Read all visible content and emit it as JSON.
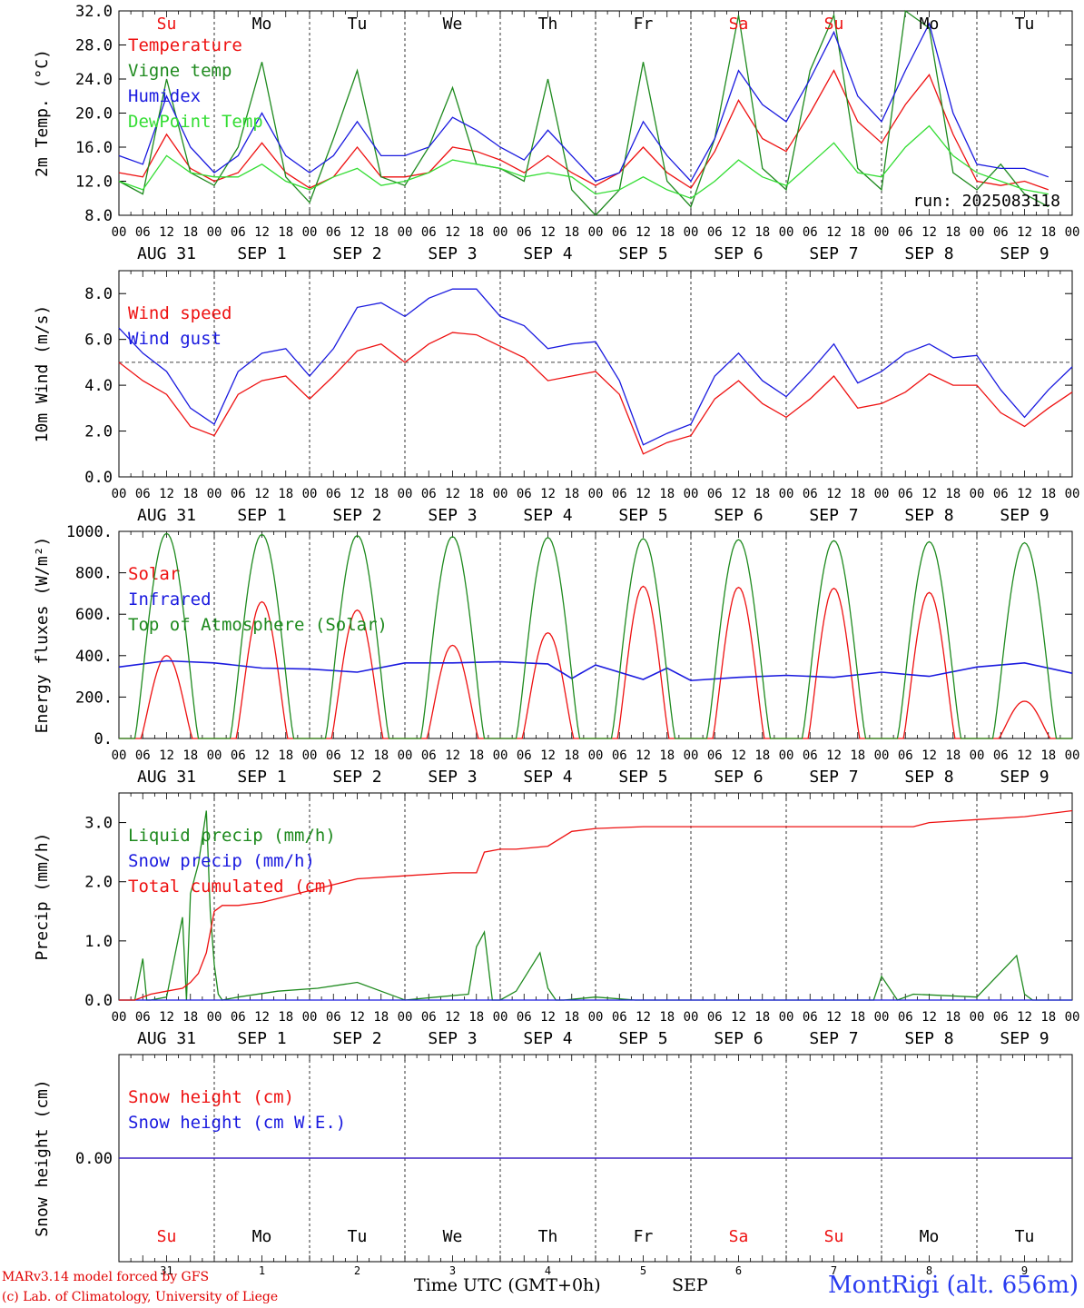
{
  "colors": {
    "red": "#ee1111",
    "green": "#1e8a1e",
    "blue": "#1a1adf",
    "lightgreen": "#33dd33",
    "black": "#000000"
  },
  "footer": {
    "credit_line1": "MARv3.14 model forced by GFS",
    "credit_line2": "(c) Lab. of Climatology, University of Liege",
    "x_title": "Time UTC (GMT+0h)",
    "month_label": "SEP",
    "station": "MontRigi (alt. 656m)"
  },
  "chart_data": [
    {
      "type": "line",
      "ylabel": "2m Temp. (°C)",
      "ylim": [
        8,
        32
      ],
      "yticks": [
        "8.0",
        "12.0",
        "16.0",
        "20.0",
        "24.0",
        "28.0",
        "32.0"
      ],
      "ytick_values": [
        8,
        12,
        16,
        20,
        24,
        28,
        32
      ],
      "run_label": "run: 2025083118",
      "day_labels": [
        {
          "text": "Su",
          "color": "red"
        },
        {
          "text": "Mo",
          "color": "black"
        },
        {
          "text": "Tu",
          "color": "black"
        },
        {
          "text": "We",
          "color": "black"
        },
        {
          "text": "Th",
          "color": "black"
        },
        {
          "text": "Fr",
          "color": "black"
        },
        {
          "text": "Sa",
          "color": "red"
        },
        {
          "text": "Su",
          "color": "red"
        },
        {
          "text": "Mo",
          "color": "black"
        },
        {
          "text": "Tu",
          "color": "black"
        }
      ],
      "series": [
        {
          "name": "Temperature",
          "color": "red",
          "hours": [
            0,
            6,
            12,
            18,
            24,
            30,
            36,
            42,
            48,
            54,
            60,
            66,
            72,
            78,
            84,
            90,
            96,
            102,
            108,
            114,
            120,
            126,
            132,
            138,
            144,
            150,
            156,
            162,
            168,
            174,
            180,
            186,
            192,
            198,
            204,
            210,
            216,
            222,
            228,
            234
          ],
          "values": [
            13,
            12.5,
            17.5,
            13.5,
            12,
            13,
            16.5,
            13,
            11.2,
            12.5,
            16,
            12.5,
            12.5,
            13,
            16,
            15.5,
            14.5,
            13,
            15,
            13,
            11.5,
            13,
            16,
            13,
            11.2,
            15.5,
            21.5,
            17,
            15.5,
            20,
            25,
            19,
            16.5,
            21,
            24.5,
            17.5,
            12,
            11.5,
            12,
            11
          ]
        },
        {
          "name": "Vigne temp",
          "color": "green",
          "hours": [
            0,
            6,
            12,
            18,
            24,
            30,
            36,
            42,
            48,
            54,
            60,
            66,
            72,
            78,
            84,
            90,
            96,
            102,
            108,
            114,
            120,
            126,
            132,
            138,
            144,
            150,
            156,
            162,
            168,
            174,
            180,
            186,
            192,
            198,
            204,
            210,
            216,
            222,
            228,
            234
          ],
          "values": [
            12,
            10.5,
            24,
            13,
            11.5,
            16,
            26,
            12.5,
            9.5,
            17,
            25,
            12.5,
            11.5,
            16,
            23,
            14,
            13.5,
            12,
            24,
            11,
            8,
            11,
            26,
            12,
            9,
            17,
            31.5,
            13.5,
            11,
            25,
            31.5,
            13.5,
            11,
            32,
            30,
            13,
            11,
            14,
            10.5,
            9
          ]
        },
        {
          "name": "Humidex",
          "color": "blue",
          "hours": [
            0,
            6,
            12,
            18,
            24,
            30,
            36,
            42,
            48,
            54,
            60,
            66,
            72,
            78,
            84,
            90,
            96,
            102,
            108,
            114,
            120,
            126,
            132,
            138,
            144,
            150,
            156,
            162,
            168,
            174,
            180,
            186,
            192,
            198,
            204,
            210,
            216,
            222,
            228,
            234
          ],
          "values": [
            15,
            14,
            22,
            16,
            13,
            15,
            20,
            15,
            13,
            15,
            19,
            15,
            15,
            16,
            19.5,
            18,
            16,
            14.5,
            18,
            15,
            12,
            13,
            19,
            15,
            12,
            17,
            25,
            21,
            19,
            24,
            29.5,
            22,
            19,
            25,
            30.5,
            20,
            14,
            13.5,
            13.5,
            12.5
          ]
        },
        {
          "name": "DewPoint Temp",
          "color": "lightgreen",
          "hours": [
            0,
            6,
            12,
            18,
            24,
            30,
            36,
            42,
            48,
            54,
            60,
            66,
            72,
            78,
            84,
            90,
            96,
            102,
            108,
            114,
            120,
            126,
            132,
            138,
            144,
            150,
            156,
            162,
            168,
            174,
            180,
            186,
            192,
            198,
            204,
            210,
            216,
            222,
            228,
            234
          ],
          "values": [
            12,
            11,
            15,
            13,
            12.5,
            12.5,
            14,
            12,
            11,
            12.5,
            13.5,
            11.5,
            12,
            13,
            14.5,
            14,
            13.5,
            12.5,
            13,
            12.5,
            10.5,
            11,
            12.5,
            11,
            10,
            12,
            14.5,
            12.5,
            11.5,
            14,
            16.5,
            13,
            12.5,
            16,
            18.5,
            15,
            13,
            12,
            11,
            10.5
          ]
        }
      ]
    },
    {
      "type": "line",
      "ylabel": "10m Wind (m/s)",
      "ylim": [
        0,
        9
      ],
      "yticks": [
        "0.0",
        "2.0",
        "4.0",
        "6.0",
        "8.0"
      ],
      "ytick_values": [
        0,
        2,
        4,
        6,
        8
      ],
      "reference_line": 5,
      "series": [
        {
          "name": "Wind speed",
          "color": "red",
          "hours": [
            0,
            6,
            12,
            18,
            24,
            30,
            36,
            42,
            48,
            54,
            60,
            66,
            72,
            78,
            84,
            90,
            96,
            102,
            108,
            114,
            120,
            126,
            132,
            138,
            144,
            150,
            156,
            162,
            168,
            174,
            180,
            186,
            192,
            198,
            204,
            210,
            216,
            222,
            228,
            234,
            240
          ],
          "values": [
            5,
            4.2,
            3.6,
            2.2,
            1.8,
            3.6,
            4.2,
            4.4,
            3.4,
            4.4,
            5.5,
            5.8,
            5,
            5.8,
            6.3,
            6.2,
            5.7,
            5.2,
            4.2,
            4.4,
            4.6,
            3.6,
            1,
            1.5,
            1.8,
            3.4,
            4.2,
            3.2,
            2.6,
            3.4,
            4.4,
            3,
            3.2,
            3.7,
            4.5,
            4,
            4,
            2.8,
            2.2,
            3,
            3.7
          ]
        },
        {
          "name": "Wind gust",
          "color": "blue",
          "hours": [
            0,
            6,
            12,
            18,
            24,
            30,
            36,
            42,
            48,
            54,
            60,
            66,
            72,
            78,
            84,
            90,
            96,
            102,
            108,
            114,
            120,
            126,
            132,
            138,
            144,
            150,
            156,
            162,
            168,
            174,
            180,
            186,
            192,
            198,
            204,
            210,
            216,
            222,
            228,
            234,
            240
          ],
          "values": [
            6.5,
            5.4,
            4.6,
            3,
            2.3,
            4.6,
            5.4,
            5.6,
            4.4,
            5.6,
            7.4,
            7.6,
            7,
            7.8,
            8.2,
            8.2,
            7,
            6.6,
            5.6,
            5.8,
            5.9,
            4.2,
            1.4,
            1.9,
            2.3,
            4.4,
            5.4,
            4.2,
            3.5,
            4.6,
            5.8,
            4.1,
            4.6,
            5.4,
            5.8,
            5.2,
            5.3,
            3.8,
            2.6,
            3.8,
            4.8
          ]
        }
      ]
    },
    {
      "type": "line",
      "ylabel": "Energy fluxes (W/m²)",
      "ylim": [
        0,
        1000
      ],
      "yticks": [
        "0.",
        "200.",
        "400.",
        "600.",
        "800.",
        "1000."
      ],
      "ytick_values": [
        0,
        200,
        400,
        600,
        800,
        1000
      ],
      "series": [
        {
          "name": "Solar",
          "color": "red",
          "peaks": [
            {
              "hour": 12,
              "value": 400
            },
            {
              "hour": 36,
              "value": 660
            },
            {
              "hour": 60,
              "value": 620
            },
            {
              "hour": 84,
              "value": 450
            },
            {
              "hour": 108,
              "value": 510
            },
            {
              "hour": 132,
              "value": 735
            },
            {
              "hour": 156,
              "value": 730
            },
            {
              "hour": 180,
              "value": 725
            },
            {
              "hour": 204,
              "value": 705
            },
            {
              "hour": 228,
              "value": 180
            }
          ]
        },
        {
          "name": "Infrared",
          "color": "blue",
          "hours": [
            0,
            12,
            24,
            36,
            48,
            60,
            72,
            84,
            96,
            108,
            114,
            120,
            132,
            138,
            144,
            156,
            168,
            180,
            192,
            204,
            216,
            228,
            240
          ],
          "values": [
            345,
            375,
            365,
            340,
            335,
            320,
            365,
            365,
            370,
            360,
            290,
            355,
            285,
            340,
            280,
            295,
            305,
            295,
            320,
            300,
            345,
            365,
            315
          ]
        },
        {
          "name": "Top of Atmosphere (Solar)",
          "color": "green",
          "peaks": [
            {
              "hour": 12,
              "value": 990
            },
            {
              "hour": 36,
              "value": 985
            },
            {
              "hour": 60,
              "value": 980
            },
            {
              "hour": 84,
              "value": 975
            },
            {
              "hour": 108,
              "value": 970
            },
            {
              "hour": 132,
              "value": 965
            },
            {
              "hour": 156,
              "value": 960
            },
            {
              "hour": 180,
              "value": 955
            },
            {
              "hour": 204,
              "value": 950
            },
            {
              "hour": 228,
              "value": 945
            }
          ]
        }
      ]
    },
    {
      "type": "line",
      "ylabel": "Precip (mm/h)",
      "ylim": [
        0,
        3.5
      ],
      "yticks": [
        "0.0",
        "1.0",
        "2.0",
        "3.0"
      ],
      "ytick_values": [
        0,
        1,
        2,
        3
      ],
      "series": [
        {
          "name": "Liquid precip (mm/h)",
          "color": "green",
          "hours": [
            0,
            4,
            6,
            7,
            8,
            12,
            16,
            17,
            18,
            20,
            22,
            23,
            24,
            25,
            26,
            30,
            40,
            50,
            60,
            70,
            72,
            80,
            88,
            90,
            92,
            94,
            96,
            100,
            106,
            108,
            110,
            112,
            120,
            130,
            190,
            192,
            196,
            200,
            216,
            226,
            228,
            230,
            240
          ],
          "values": [
            0,
            0,
            0.7,
            0,
            0,
            0.05,
            1.4,
            0,
            1.8,
            2.3,
            3.2,
            1.5,
            0.6,
            0.1,
            0,
            0.05,
            0.15,
            0.2,
            0.3,
            0.05,
            0,
            0.05,
            0.1,
            0.9,
            1.15,
            0,
            0,
            0.15,
            0.8,
            0.2,
            0,
            0,
            0.05,
            0,
            0,
            0.4,
            0,
            0.1,
            0.05,
            0.75,
            0.1,
            0,
            0
          ]
        },
        {
          "name": "Snow precip (mm/h)",
          "color": "blue",
          "hours": [
            0,
            240
          ],
          "values": [
            0,
            0
          ]
        },
        {
          "name": "Total cumulated (cm)",
          "color": "red",
          "hours": [
            0,
            4,
            8,
            12,
            16,
            18,
            20,
            22,
            24,
            26,
            30,
            36,
            48,
            60,
            72,
            84,
            90,
            92,
            96,
            100,
            108,
            114,
            120,
            132,
            144,
            156,
            168,
            180,
            192,
            200,
            204,
            216,
            228,
            240
          ],
          "values": [
            0,
            0,
            0.1,
            0.15,
            0.2,
            0.3,
            0.45,
            0.8,
            1.5,
            1.6,
            1.6,
            1.65,
            1.85,
            2.05,
            2.1,
            2.15,
            2.15,
            2.5,
            2.55,
            2.55,
            2.6,
            2.85,
            2.9,
            2.93,
            2.93,
            2.93,
            2.93,
            2.93,
            2.93,
            2.93,
            3,
            3.05,
            3.1,
            3.2
          ]
        }
      ]
    },
    {
      "type": "line",
      "ylabel": "Snow height (cm)",
      "ylim": [
        -1,
        1
      ],
      "yticks": [
        "0.00"
      ],
      "ytick_values": [
        0
      ],
      "series": [
        {
          "name": "Snow height (cm)",
          "color": "red",
          "hours": [
            0,
            240
          ],
          "values": [
            0,
            0
          ]
        },
        {
          "name": "Snow height (cm W.E.)",
          "color": "blue",
          "hours": [
            0,
            240
          ],
          "values": [
            0,
            0
          ]
        }
      ],
      "day_labels": [
        {
          "text": "Su",
          "color": "red"
        },
        {
          "text": "Mo",
          "color": "black"
        },
        {
          "text": "Tu",
          "color": "black"
        },
        {
          "text": "We",
          "color": "black"
        },
        {
          "text": "Th",
          "color": "black"
        },
        {
          "text": "Fr",
          "color": "black"
        },
        {
          "text": "Sa",
          "color": "red"
        },
        {
          "text": "Su",
          "color": "red"
        },
        {
          "text": "Mo",
          "color": "black"
        },
        {
          "text": "Tu",
          "color": "black"
        }
      ],
      "day_numbers": [
        "31",
        "1",
        "2",
        "3",
        "4",
        "5",
        "6",
        "7",
        "8",
        "9"
      ]
    }
  ],
  "axis": {
    "hour_ticks": [
      "00",
      "06",
      "12",
      "18"
    ],
    "last_tick": "00",
    "date_labels": [
      "AUG 31",
      "SEP  1",
      "SEP  2",
      "SEP  3",
      "SEP  4",
      "SEP  5",
      "SEP  6",
      "SEP  7",
      "SEP  8",
      "SEP  9"
    ]
  }
}
